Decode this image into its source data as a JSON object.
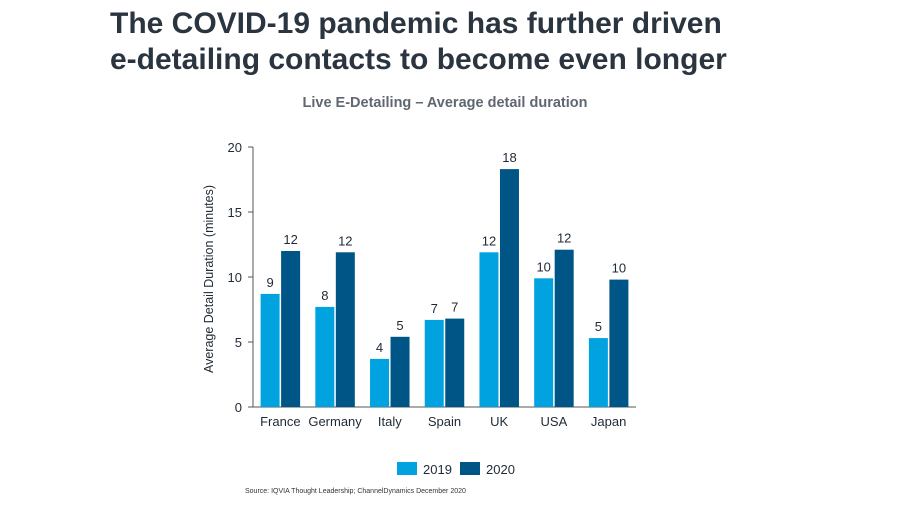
{
  "slide": {
    "headline_line1": "The COVID-19 pandemic has further driven",
    "headline_line2": "e-detailing contacts to become even longer",
    "source": "Source: IQVIA Thought Leadership; ChannelDynamics December 2020"
  },
  "chart_data": {
    "type": "bar",
    "title": "Live E-Detailing – Average detail duration",
    "xlabel": "",
    "ylabel": "Average Detail Duration (minutes)",
    "ylim": [
      0,
      20
    ],
    "yticks": [
      0,
      5,
      10,
      15,
      20
    ],
    "categories": [
      "France",
      "Germany",
      "Italy",
      "Spain",
      "UK",
      "USA",
      "Japan"
    ],
    "series": [
      {
        "name": "2019",
        "color": "#00a3e0",
        "values": [
          8.7,
          7.7,
          3.7,
          6.7,
          11.9,
          9.9,
          5.3
        ],
        "labels": [
          "9",
          "8",
          "4",
          "7",
          "12",
          "10",
          "5"
        ]
      },
      {
        "name": "2020",
        "color": "#005587",
        "values": [
          12.0,
          11.9,
          5.4,
          6.8,
          18.3,
          12.1,
          9.8
        ],
        "labels": [
          "12",
          "12",
          "5",
          "7",
          "18",
          "12",
          "10"
        ]
      }
    ],
    "grid": false,
    "legend_position": "bottom"
  }
}
